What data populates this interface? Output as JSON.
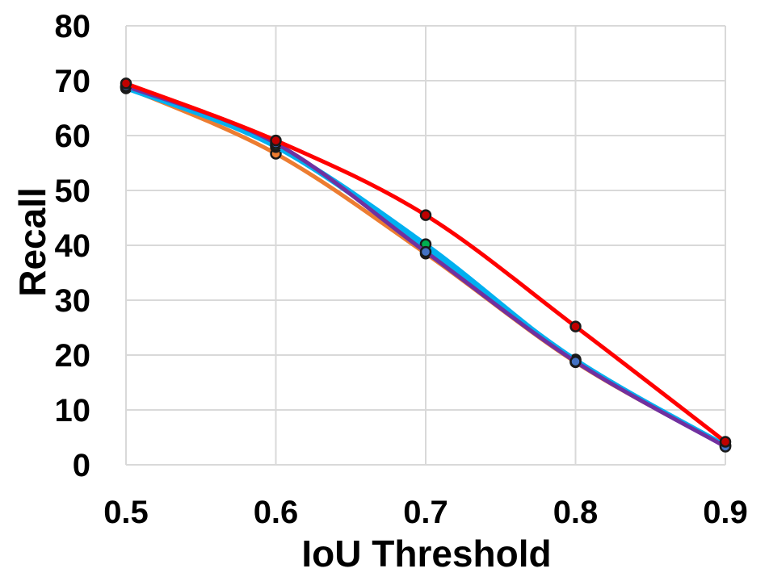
{
  "chart_data": {
    "type": "line",
    "title": "",
    "xlabel": "IoU Threshold",
    "ylabel": "Recall",
    "x": [
      0.5,
      0.6,
      0.7,
      0.8,
      0.9
    ],
    "x_tick_labels": [
      "0.5",
      "0.6",
      "0.7",
      "0.8",
      "0.9"
    ],
    "y_tick_labels": [
      "0",
      "10",
      "20",
      "30",
      "40",
      "50",
      "60",
      "70",
      "80"
    ],
    "xlim": [
      0.5,
      0.9
    ],
    "ylim": [
      0,
      80
    ],
    "grid": true,
    "legend": "none",
    "smooth": true,
    "series": [
      {
        "color": "#ED7D31",
        "marker_color": "#ED7D31",
        "values": [
          68.8,
          56.7,
          38.5,
          18.7,
          3.4
        ]
      },
      {
        "color": "#00B0F0",
        "marker_color": "#4472C4",
        "values": [
          68.6,
          57.9,
          39.5,
          19.2,
          3.6
        ]
      },
      {
        "color": "#00B0F0",
        "marker_color": "#00B050",
        "values": [
          68.9,
          58.2,
          40.2,
          19.0,
          3.5
        ]
      },
      {
        "color": "#7030A0",
        "marker_color": "#4472C4",
        "values": [
          69.0,
          58.6,
          38.8,
          18.8,
          3.3
        ]
      },
      {
        "color": "#FF0000",
        "marker_color": "#C00000",
        "values": [
          69.5,
          59.1,
          45.5,
          25.2,
          4.2
        ]
      }
    ]
  }
}
